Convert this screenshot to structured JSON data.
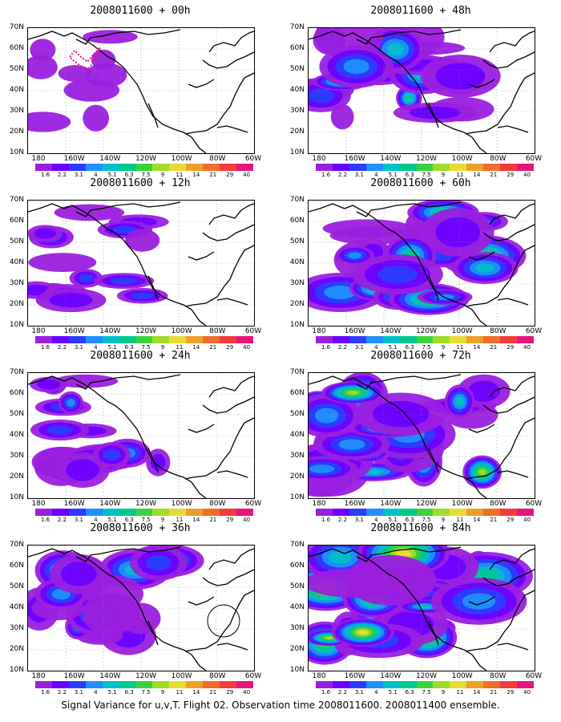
{
  "panels": [
    {
      "title": "2008011600 + 00h",
      "spread": 0.15,
      "circle": false,
      "track": true
    },
    {
      "title": "2008011600 + 48h",
      "spread": 0.65,
      "circle": false,
      "track": false
    },
    {
      "title": "2008011600 + 12h",
      "spread": 0.35,
      "circle": false,
      "track": false
    },
    {
      "title": "2008011600 + 60h",
      "spread": 0.75,
      "circle": false,
      "track": false
    },
    {
      "title": "2008011600 + 24h",
      "spread": 0.45,
      "circle": false,
      "track": false
    },
    {
      "title": "2008011600 + 72h",
      "spread": 0.85,
      "circle": false,
      "track": false
    },
    {
      "title": "2008011600 + 36h",
      "spread": 0.55,
      "circle": true,
      "track": false
    },
    {
      "title": "2008011600 + 84h",
      "spread": 0.95,
      "circle": false,
      "track": false
    }
  ],
  "chart_data": {
    "type": "heatmap",
    "y_ticks": [
      "70N",
      "60N",
      "50N",
      "40N",
      "30N",
      "20N",
      "10N"
    ],
    "x_ticks": [
      "180",
      "160W",
      "140W",
      "120W",
      "100W",
      "80W",
      "60W"
    ],
    "colorbar_labels": [
      "1.6",
      "2.2",
      "3.1",
      "4",
      "5.1",
      "6.3",
      "7.5",
      "9",
      "11",
      "14",
      "21",
      "29",
      "40"
    ],
    "colorbar_colors": [
      "#9b1fe0",
      "#6a00ff",
      "#2b3cff",
      "#1e90ff",
      "#00c0c8",
      "#00c88c",
      "#3cd23c",
      "#a0dc28",
      "#e6dc32",
      "#eaa02a",
      "#f06e2a",
      "#f03c3c",
      "#e6147d"
    ],
    "caption": "Signal Variance for u,v,T. Flight 02. Observation time 2008011600. 2008011400 ensemble."
  }
}
